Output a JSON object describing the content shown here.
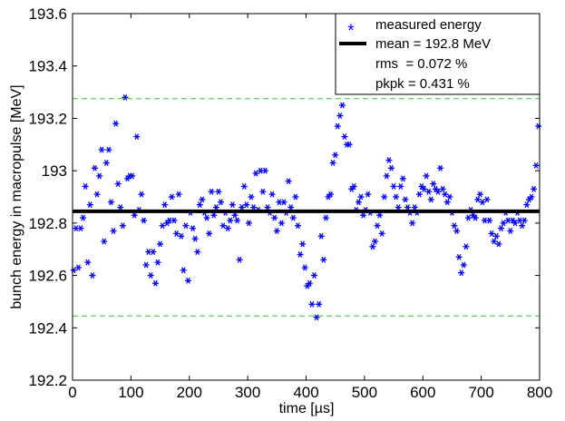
{
  "chart_data": {
    "type": "scatter",
    "title": "",
    "xlabel": "time [µs]",
    "ylabel": "bunch energy in macropulse [MeV]",
    "xlim": [
      0,
      800
    ],
    "ylim": [
      192.2,
      193.6
    ],
    "x_ticks": [
      "0",
      "100",
      "200",
      "300",
      "400",
      "500",
      "600",
      "700",
      "800"
    ],
    "y_ticks": [
      "192.2",
      "192.4",
      "192.6",
      "192.8",
      "193",
      "193.2",
      "193.4",
      "193.6"
    ],
    "grid": false,
    "legend_position": "top-right",
    "legend": {
      "series_label": "measured energy",
      "mean_label": "mean = 192.8 MeV",
      "rms_label": "rms  = 0.072 %",
      "pkpk_label": "pkpk = 0.431 %"
    },
    "colors": {
      "points": "#0000ff",
      "mean_line": "#000000",
      "limit_lines": "#33cc33"
    },
    "mean": 192.845,
    "limits": [
      192.445,
      193.275
    ],
    "series": [
      {
        "name": "measured energy",
        "points": [
          [
            2,
            192.62
          ],
          [
            6,
            192.78
          ],
          [
            10,
            192.63
          ],
          [
            14,
            192.78
          ],
          [
            18,
            192.82
          ],
          [
            22,
            192.94
          ],
          [
            26,
            192.65
          ],
          [
            30,
            192.87
          ],
          [
            34,
            192.6
          ],
          [
            38,
            193.01
          ],
          [
            42,
            192.91
          ],
          [
            46,
            192.98
          ],
          [
            50,
            193.08
          ],
          [
            54,
            192.73
          ],
          [
            58,
            193.03
          ],
          [
            62,
            193.08
          ],
          [
            66,
            192.88
          ],
          [
            70,
            192.77
          ],
          [
            74,
            193.18
          ],
          [
            78,
            192.95
          ],
          [
            82,
            192.86
          ],
          [
            86,
            192.79
          ],
          [
            90,
            193.28
          ],
          [
            94,
            192.97
          ],
          [
            98,
            192.98
          ],
          [
            102,
            192.98
          ],
          [
            106,
            192.83
          ],
          [
            110,
            193.13
          ],
          [
            114,
            192.85
          ],
          [
            118,
            192.91
          ],
          [
            122,
            192.81
          ],
          [
            126,
            192.64
          ],
          [
            130,
            192.69
          ],
          [
            134,
            192.6
          ],
          [
            138,
            192.69
          ],
          [
            142,
            192.57
          ],
          [
            146,
            192.65
          ],
          [
            150,
            192.72
          ],
          [
            154,
            192.79
          ],
          [
            158,
            192.87
          ],
          [
            162,
            192.8
          ],
          [
            166,
            192.81
          ],
          [
            170,
            192.9
          ],
          [
            174,
            192.81
          ],
          [
            178,
            192.76
          ],
          [
            182,
            192.91
          ],
          [
            186,
            192.75
          ],
          [
            190,
            192.62
          ],
          [
            194,
            192.79
          ],
          [
            198,
            192.58
          ],
          [
            202,
            192.84
          ],
          [
            206,
            192.78
          ],
          [
            210,
            192.74
          ],
          [
            214,
            192.69
          ],
          [
            218,
            192.87
          ],
          [
            222,
            192.89
          ],
          [
            226,
            192.84
          ],
          [
            230,
            192.82
          ],
          [
            234,
            192.76
          ],
          [
            238,
            192.92
          ],
          [
            242,
            192.83
          ],
          [
            246,
            192.86
          ],
          [
            250,
            192.92
          ],
          [
            254,
            192.88
          ],
          [
            258,
            192.79
          ],
          [
            262,
            192.84
          ],
          [
            266,
            192.78
          ],
          [
            270,
            192.81
          ],
          [
            274,
            192.87
          ],
          [
            278,
            192.83
          ],
          [
            282,
            192.81
          ],
          [
            286,
            192.66
          ],
          [
            290,
            192.86
          ],
          [
            294,
            192.94
          ],
          [
            298,
            192.87
          ],
          [
            302,
            192.8
          ],
          [
            306,
            192.9
          ],
          [
            310,
            192.86
          ],
          [
            314,
            192.99
          ],
          [
            318,
            192.85
          ],
          [
            322,
            193.0
          ],
          [
            326,
            192.92
          ],
          [
            330,
            193.0
          ],
          [
            334,
            192.86
          ],
          [
            338,
            192.84
          ],
          [
            342,
            192.91
          ],
          [
            346,
            192.82
          ],
          [
            350,
            192.77
          ],
          [
            354,
            192.88
          ],
          [
            358,
            192.8
          ],
          [
            362,
            192.88
          ],
          [
            366,
            192.84
          ],
          [
            370,
            192.96
          ],
          [
            374,
            192.86
          ],
          [
            378,
            192.82
          ],
          [
            382,
            192.9
          ],
          [
            386,
            192.79
          ],
          [
            390,
            192.68
          ],
          [
            394,
            192.72
          ],
          [
            398,
            192.63
          ],
          [
            402,
            192.56
          ],
          [
            406,
            192.57
          ],
          [
            410,
            192.49
          ],
          [
            414,
            192.6
          ],
          [
            418,
            192.44
          ],
          [
            422,
            192.49
          ],
          [
            426,
            192.75
          ],
          [
            430,
            192.66
          ],
          [
            434,
            192.82
          ],
          [
            438,
            192.9
          ],
          [
            442,
            192.91
          ],
          [
            446,
            193.03
          ],
          [
            450,
            193.06
          ],
          [
            454,
            193.17
          ],
          [
            458,
            193.21
          ],
          [
            462,
            193.25
          ],
          [
            466,
            193.13
          ],
          [
            470,
            193.1
          ],
          [
            474,
            193.1
          ],
          [
            478,
            192.93
          ],
          [
            482,
            192.94
          ],
          [
            486,
            192.85
          ],
          [
            490,
            192.88
          ],
          [
            494,
            192.9
          ],
          [
            498,
            192.83
          ],
          [
            502,
            192.85
          ],
          [
            506,
            192.91
          ],
          [
            510,
            192.84
          ],
          [
            514,
            192.71
          ],
          [
            518,
            192.73
          ],
          [
            522,
            192.79
          ],
          [
            526,
            192.83
          ],
          [
            530,
            192.76
          ],
          [
            534,
            192.9
          ],
          [
            538,
            192.98
          ],
          [
            542,
            193.04
          ],
          [
            546,
            193.01
          ],
          [
            550,
            192.94
          ],
          [
            554,
            192.9
          ],
          [
            558,
            192.86
          ],
          [
            562,
            192.94
          ],
          [
            566,
            192.97
          ],
          [
            570,
            192.89
          ],
          [
            574,
            192.86
          ],
          [
            578,
            192.84
          ],
          [
            582,
            192.8
          ],
          [
            586,
            192.86
          ],
          [
            590,
            192.84
          ],
          [
            594,
            192.91
          ],
          [
            598,
            192.94
          ],
          [
            602,
            192.93
          ],
          [
            606,
            192.98
          ],
          [
            610,
            192.92
          ],
          [
            614,
            192.89
          ],
          [
            618,
            192.95
          ],
          [
            622,
            192.93
          ],
          [
            626,
            192.92
          ],
          [
            630,
            193.01
          ],
          [
            634,
            192.93
          ],
          [
            638,
            192.91
          ],
          [
            642,
            192.88
          ],
          [
            646,
            192.9
          ],
          [
            650,
            192.84
          ],
          [
            654,
            192.79
          ],
          [
            658,
            192.77
          ],
          [
            662,
            192.67
          ],
          [
            666,
            192.61
          ],
          [
            670,
            192.64
          ],
          [
            674,
            192.71
          ],
          [
            678,
            192.82
          ],
          [
            682,
            192.85
          ],
          [
            686,
            192.83
          ],
          [
            690,
            192.82
          ],
          [
            694,
            192.89
          ],
          [
            698,
            192.91
          ],
          [
            702,
            192.88
          ],
          [
            706,
            192.81
          ],
          [
            710,
            192.89
          ],
          [
            714,
            192.81
          ],
          [
            718,
            192.76
          ],
          [
            722,
            192.73
          ],
          [
            726,
            192.75
          ],
          [
            730,
            192.72
          ],
          [
            734,
            192.78
          ],
          [
            738,
            192.8
          ],
          [
            742,
            192.84
          ],
          [
            746,
            192.81
          ],
          [
            750,
            192.77
          ],
          [
            754,
            192.81
          ],
          [
            758,
            192.8
          ],
          [
            762,
            192.84
          ],
          [
            766,
            192.81
          ],
          [
            770,
            192.79
          ],
          [
            774,
            192.81
          ],
          [
            778,
            192.87
          ],
          [
            782,
            192.89
          ],
          [
            786,
            192.9
          ],
          [
            790,
            192.93
          ],
          [
            794,
            193.02
          ],
          [
            798,
            193.17
          ]
        ]
      }
    ]
  }
}
